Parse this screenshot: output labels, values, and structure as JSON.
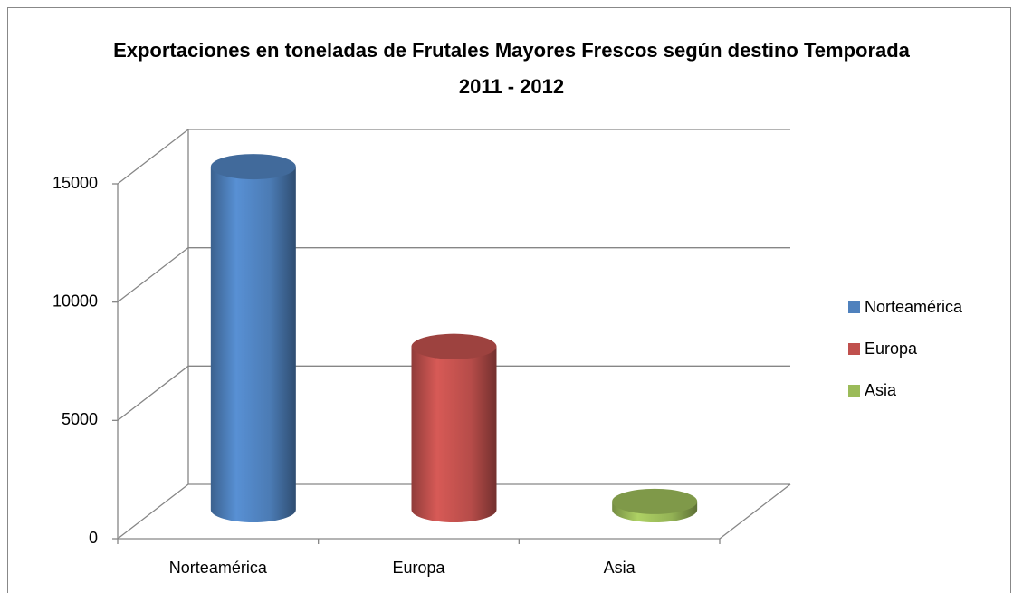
{
  "chart_data": {
    "type": "bar3d",
    "title": "Exportaciones en toneladas de Frutales Mayores Frescos según destino Temporada 2011 - 2012",
    "categories": [
      "Norteamérica",
      "Europa",
      "Asia"
    ],
    "values": [
      14500,
      6900,
      350
    ],
    "colors": [
      "#4f81bd",
      "#c0504d",
      "#9bbb59"
    ],
    "ylim": [
      0,
      15000
    ],
    "yticks": [
      0,
      5000,
      10000,
      15000
    ],
    "grid": true,
    "legend": "right"
  }
}
